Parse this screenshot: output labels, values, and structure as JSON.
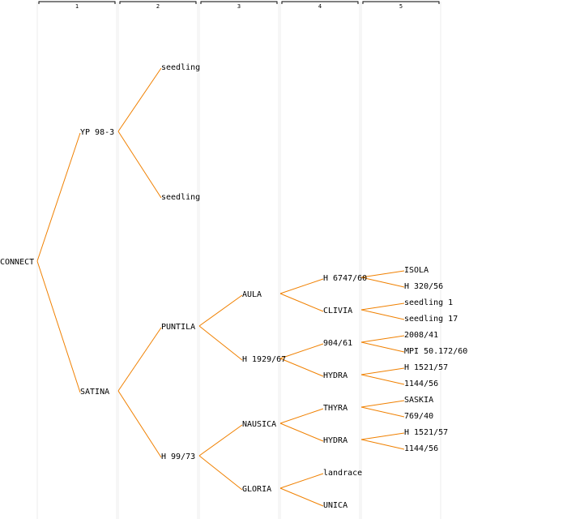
{
  "generation_columns": [
    "1",
    "2",
    "3",
    "4",
    "5"
  ],
  "colors": {
    "edge": "#f08000",
    "grid": "#ececec",
    "text": "#000000",
    "highlight": "#0000ee"
  },
  "pedigree": {
    "name": "CONNECT",
    "children": [
      {
        "name": "YP 98-3",
        "children": [
          {
            "name": "seedling"
          },
          {
            "name": "seedling"
          }
        ]
      },
      {
        "name": "SATINA",
        "children": [
          {
            "name": "PUNTILA",
            "children": [
              {
                "name": "AULA",
                "children": [
                  {
                    "name": "H 6747/60",
                    "children": [
                      {
                        "name": "ISOLA"
                      },
                      {
                        "name": "H 320/56"
                      }
                    ]
                  },
                  {
                    "name": "CLIVIA",
                    "children": [
                      {
                        "name": "seedling 1"
                      },
                      {
                        "name": "seedling 17"
                      }
                    ]
                  }
                ]
              },
              {
                "name": "H 1929/67",
                "children": [
                  {
                    "name": "904/61",
                    "children": [
                      {
                        "name": "2008/41"
                      },
                      {
                        "name": "MPI 50.172/60"
                      }
                    ]
                  },
                  {
                    "name": "HYDRA",
                    "children": [
                      {
                        "name": "H 1521/57"
                      },
                      {
                        "name": "1144/56"
                      }
                    ]
                  }
                ]
              }
            ]
          },
          {
            "name": "H 99/73",
            "children": [
              {
                "name": "NAUSICA",
                "children": [
                  {
                    "name": "THYRA",
                    "children": [
                      {
                        "name": "SASKIA"
                      },
                      {
                        "name": "769/40"
                      }
                    ]
                  },
                  {
                    "name": "HYDRA",
                    "children": [
                      {
                        "name": "H 1521/57"
                      },
                      {
                        "name": "1144/56"
                      }
                    ]
                  }
                ]
              },
              {
                "name": "GLORIA",
                "highlight": true,
                "children": [
                  {
                    "name": "landrace"
                  },
                  {
                    "name": "UNICA"
                  }
                ]
              }
            ]
          }
        ]
      }
    ]
  }
}
